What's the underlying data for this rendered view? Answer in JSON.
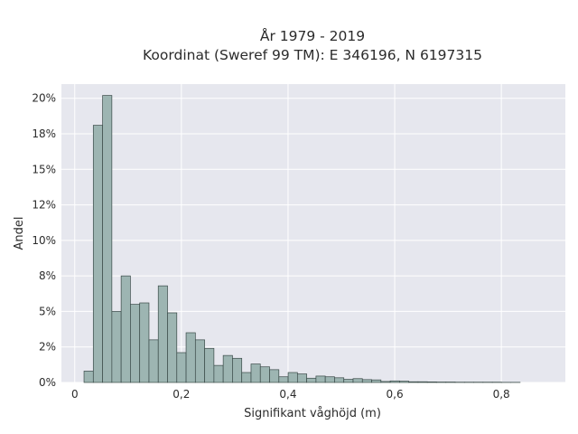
{
  "chart_data": {
    "type": "bar",
    "title_lines": [
      "År 1979 - 2019",
      "Koordinat (Sweref 99 TM): E 346196, N 6197315"
    ],
    "xlabel": "Signifikant våghöjd (m)",
    "ylabel": "Andel",
    "x_ticks": [
      "0",
      "0,2",
      "0,4",
      "0,6",
      "0,8"
    ],
    "x_tick_values": [
      0,
      0.2,
      0.4,
      0.6,
      0.8
    ],
    "y_ticks": [
      "0%",
      "2%",
      "5%",
      "8%",
      "10%",
      "12%",
      "15%",
      "18%",
      "20%"
    ],
    "y_tick_values": [
      0,
      2.5,
      5,
      7.5,
      10,
      12.5,
      15,
      17.5,
      20
    ],
    "xlim": [
      -0.025,
      0.92
    ],
    "ylim": [
      0,
      21
    ],
    "grid": true,
    "bin_width": 0.0174,
    "bin_start": 0.0174,
    "values": [
      0.8,
      18.1,
      20.2,
      5.0,
      7.5,
      5.5,
      5.6,
      3.0,
      6.8,
      4.9,
      2.1,
      3.5,
      3.0,
      2.4,
      1.2,
      1.9,
      1.7,
      0.7,
      1.3,
      1.1,
      0.9,
      0.4,
      0.7,
      0.6,
      0.3,
      0.45,
      0.4,
      0.33,
      0.22,
      0.27,
      0.2,
      0.18,
      0.07,
      0.11,
      0.09,
      0.05,
      0.05,
      0.04,
      0.03,
      0.03,
      0.02,
      0.02,
      0.02,
      0.02,
      0.02,
      0.01,
      0.01
    ],
    "colors": {
      "bar_fill": "#9db5b2",
      "bar_edge": "#3a4a48",
      "plot_bg": "#e6e7ee",
      "grid": "#ffffff"
    }
  }
}
